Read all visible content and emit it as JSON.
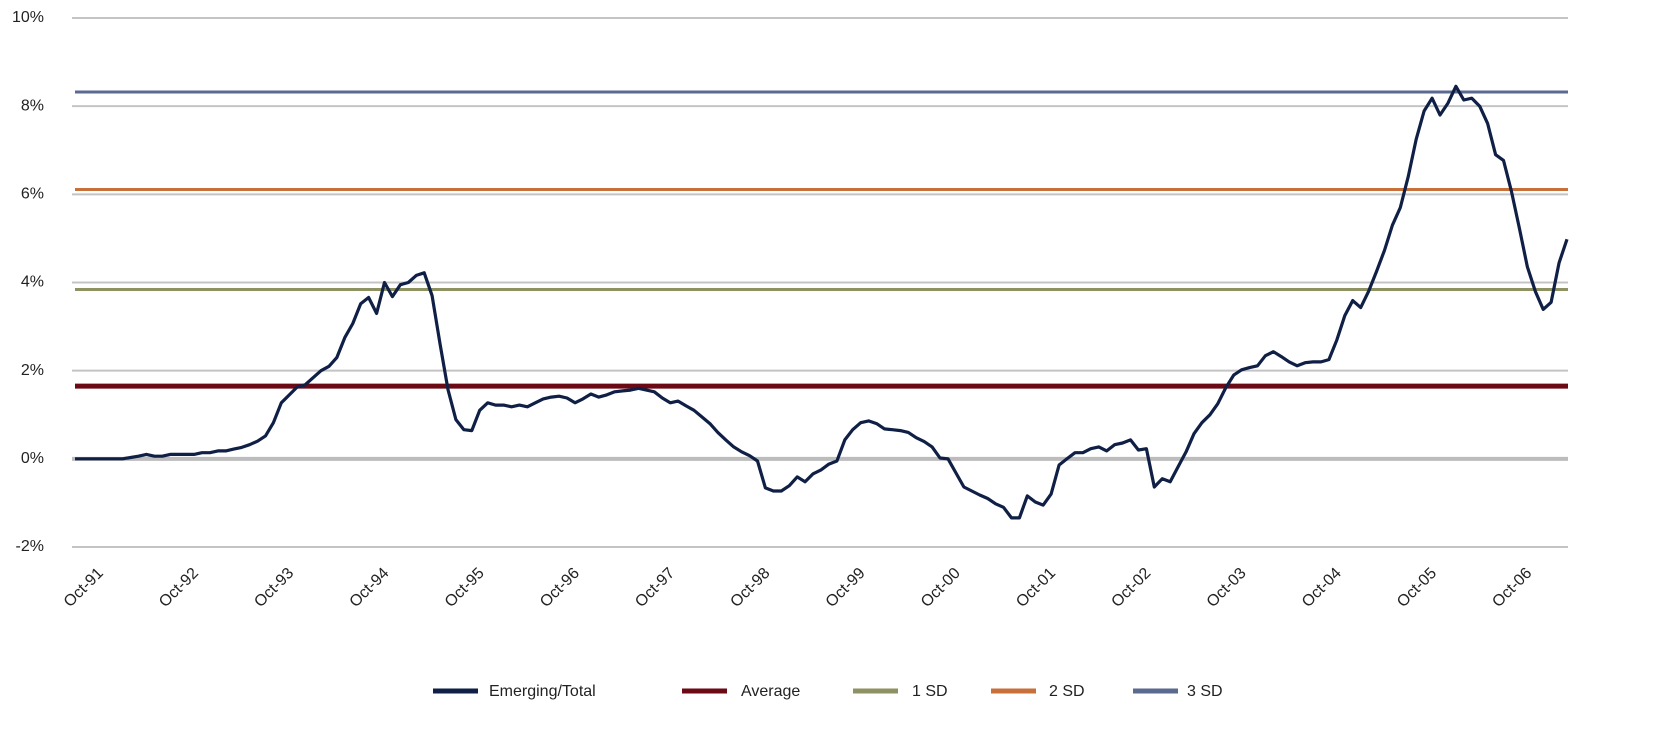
{
  "chart_data": {
    "type": "line",
    "categories": [
      "Oct-91",
      null,
      null,
      null,
      null,
      null,
      null,
      null,
      null,
      null,
      null,
      null,
      "Oct-92",
      null,
      null,
      null,
      null,
      null,
      null,
      null,
      null,
      null,
      null,
      null,
      "Oct-93",
      null,
      null,
      null,
      null,
      null,
      null,
      null,
      null,
      null,
      null,
      null,
      "Oct-94",
      null,
      null,
      null,
      null,
      null,
      null,
      null,
      null,
      null,
      null,
      null,
      "Oct-95",
      null,
      null,
      null,
      null,
      null,
      null,
      null,
      null,
      null,
      null,
      null,
      "Oct-96",
      null,
      null,
      null,
      null,
      null,
      null,
      null,
      null,
      null,
      null,
      null,
      "Oct-97",
      null,
      null,
      null,
      null,
      null,
      null,
      null,
      null,
      null,
      null,
      null,
      "Oct-98",
      null,
      null,
      null,
      null,
      null,
      null,
      null,
      null,
      null,
      null,
      null,
      "Oct-99",
      null,
      null,
      null,
      null,
      null,
      null,
      null,
      null,
      null,
      null,
      null,
      "Oct-00",
      null,
      null,
      null,
      null,
      null,
      null,
      null,
      null,
      null,
      null,
      null,
      "Oct-01",
      null,
      null,
      null,
      null,
      null,
      null,
      null,
      null,
      null,
      null,
      null,
      "Oct-02",
      null,
      null,
      null,
      null,
      null,
      null,
      null,
      null,
      null,
      null,
      null,
      "Oct-03",
      null,
      null,
      null,
      null,
      null,
      null,
      null,
      null,
      null,
      null,
      null,
      "Oct-04",
      null,
      null,
      null,
      null,
      null,
      null,
      null,
      null,
      null,
      null,
      null,
      "Oct-05",
      null,
      null,
      null,
      null,
      null,
      null,
      null,
      null,
      null,
      null,
      null,
      "Oct-06",
      null,
      null,
      null,
      null,
      null,
      null,
      null,
      null
    ],
    "series": [
      {
        "name": "Emerging/Total",
        "color": "#0f1f45",
        "values": [
          0,
          0,
          0,
          0,
          0,
          0,
          0,
          0.03,
          0.06,
          0.1,
          0.06,
          0.06,
          0.1,
          0.1,
          0.1,
          0.1,
          0.14,
          0.14,
          0.18,
          0.18,
          0.22,
          0.26,
          0.32,
          0.4,
          0.52,
          0.82,
          1.27,
          1.45,
          1.63,
          1.68,
          1.84,
          2.0,
          2.1,
          2.3,
          2.75,
          3.07,
          3.52,
          3.66,
          3.3,
          4.0,
          3.68,
          3.95,
          4.0,
          4.16,
          4.22,
          3.7,
          2.6,
          1.57,
          0.89,
          0.66,
          0.64,
          1.1,
          1.27,
          1.22,
          1.22,
          1.18,
          1.22,
          1.18,
          1.27,
          1.36,
          1.4,
          1.42,
          1.38,
          1.27,
          1.36,
          1.47,
          1.4,
          1.45,
          1.52,
          1.54,
          1.56,
          1.6,
          1.56,
          1.52,
          1.38,
          1.27,
          1.31,
          1.2,
          1.1,
          0.95,
          0.8,
          0.6,
          0.43,
          0.27,
          0.16,
          0.07,
          -0.05,
          -0.66,
          -0.73,
          -0.73,
          -0.61,
          -0.41,
          -0.52,
          -0.34,
          -0.25,
          -0.12,
          -0.05,
          0.43,
          0.66,
          0.82,
          0.86,
          0.8,
          0.68,
          0.66,
          0.64,
          0.6,
          0.48,
          0.39,
          0.27,
          0.02,
          0,
          -0.32,
          -0.64,
          -0.73,
          -0.82,
          -0.9,
          -1.02,
          -1.1,
          -1.34,
          -1.34,
          -0.84,
          -0.98,
          -1.05,
          -0.8,
          -0.14,
          0,
          0.14,
          0.14,
          0.23,
          0.27,
          0.18,
          0.32,
          0.36,
          0.43,
          0.2,
          0.23,
          -0.64,
          -0.45,
          -0.52,
          -0.18,
          0.16,
          0.57,
          0.82,
          1.0,
          1.25,
          1.61,
          1.9,
          2.02,
          2.07,
          2.11,
          2.34,
          2.43,
          2.32,
          2.2,
          2.11,
          2.18,
          2.2,
          2.2,
          2.25,
          2.7,
          3.25,
          3.59,
          3.43,
          3.8,
          4.25,
          4.73,
          5.3,
          5.7,
          6.41,
          7.25,
          7.89,
          8.18,
          7.8,
          8.07,
          8.45,
          8.14,
          8.18,
          8.0,
          7.61,
          6.9,
          6.77,
          6.07,
          5.23,
          4.36,
          3.8,
          3.39,
          3.55,
          4.45,
          4.98
        ]
      }
    ],
    "reference_lines": [
      {
        "name": "Average",
        "color": "#6b0a14",
        "value": 1.65
      },
      {
        "name": "1 SD",
        "color": "#8e9162",
        "value": 3.84
      },
      {
        "name": "2 SD",
        "color": "#c8703a",
        "value": 6.11
      },
      {
        "name": "3 SD",
        "color": "#5b6a8f",
        "value": 8.32
      }
    ],
    "ylim": [
      -2,
      10
    ],
    "yticks": [
      {
        "value": -2,
        "label": "-2%"
      },
      {
        "value": 0,
        "label": "0%"
      },
      {
        "value": 2,
        "label": "2%"
      },
      {
        "value": 4,
        "label": "4%"
      },
      {
        "value": 6,
        "label": "6%"
      },
      {
        "value": 8,
        "label": "8%"
      },
      {
        "value": 10,
        "label": "10%"
      }
    ],
    "grid": true,
    "legend": "bottom"
  }
}
